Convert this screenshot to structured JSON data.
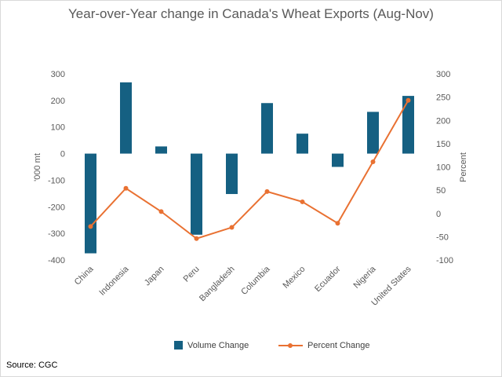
{
  "chart_data": {
    "type": "bar",
    "title": "Year-over-Year change in Canada's Wheat Exports (Aug-Nov)",
    "categories": [
      "China",
      "Indonesia",
      "Japan",
      "Peru",
      "Bangladesh",
      "Columbia",
      "Mexico",
      "Ecuador",
      "Nigeria",
      "United States"
    ],
    "series": [
      {
        "name": "Volume Change",
        "type": "bar",
        "axis": "left",
        "color": "#156082",
        "values": [
          -375,
          268,
          27,
          -305,
          -152,
          190,
          75,
          -50,
          157,
          217
        ]
      },
      {
        "name": "Percent Change",
        "type": "line",
        "axis": "right",
        "color": "#E97132",
        "values": [
          -28,
          54,
          4,
          -54,
          -30,
          47,
          25,
          -21,
          111,
          243
        ]
      }
    ],
    "ylabel": "'000 mt",
    "ylim": [
      -400,
      300
    ],
    "yticks": [
      "300",
      "200",
      "100",
      "0",
      "-100",
      "-200",
      "-300",
      "-400"
    ],
    "y2label": "Percent",
    "y2lim": [
      -100,
      300
    ],
    "y2ticks": [
      "300",
      "250",
      "200",
      "150",
      "100",
      "50",
      "0",
      "-50",
      "-100"
    ],
    "legend_position": "bottom",
    "grid": false
  },
  "source": "Source: CGC"
}
